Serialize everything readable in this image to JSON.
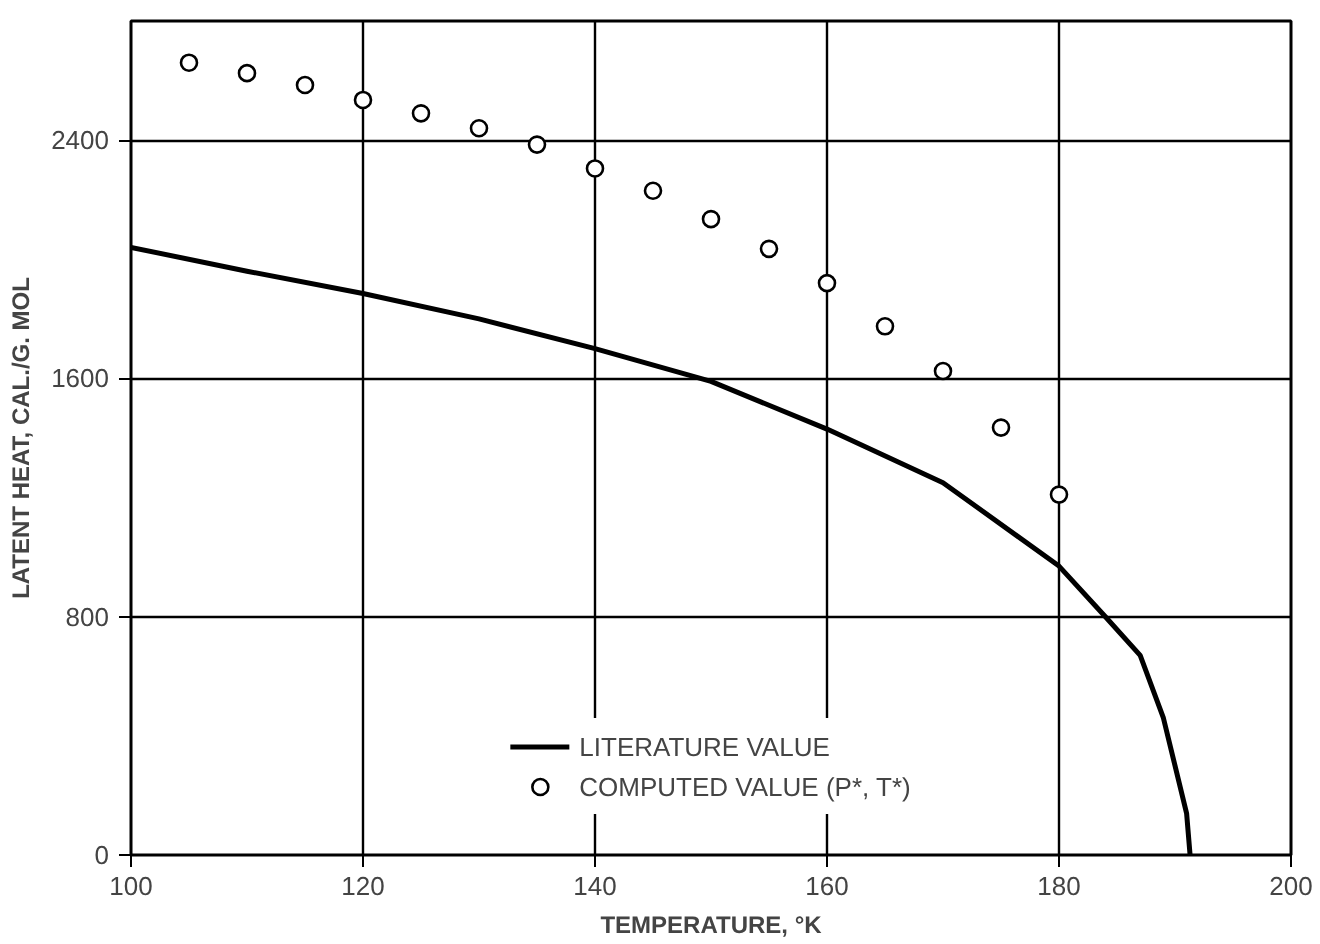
{
  "chart_data": {
    "type": "line",
    "xlabel": "TEMPERATURE, °K",
    "ylabel": "LATENT HEAT, CAL./G. MOL",
    "xlim": [
      100,
      200
    ],
    "ylim": [
      0,
      2800
    ],
    "xticks": [
      100,
      120,
      140,
      160,
      180,
      200
    ],
    "yticks": [
      0,
      800,
      1600,
      2400
    ],
    "grid": true,
    "legend": "bottom",
    "series": [
      {
        "name": "LITERATURE VALUE",
        "color": "#000000",
        "marker": "none",
        "line_style": "solid",
        "x": [
          100,
          110,
          120,
          130,
          140,
          150,
          160,
          170,
          180,
          184,
          187,
          189,
          190,
          191,
          191.3
        ],
        "values": [
          2040,
          1960,
          1885,
          1800,
          1700,
          1590,
          1430,
          1250,
          970,
          800,
          670,
          460,
          300,
          140,
          0
        ]
      },
      {
        "name": "COMPUTED VALUE (P*, T*)",
        "type": "scatter",
        "color": "#000000",
        "marker": "circle",
        "x": [
          105,
          110,
          115,
          120,
          125,
          130,
          135,
          140,
          145,
          150,
          155,
          160,
          165,
          170,
          175,
          180
        ],
        "values": [
          2660,
          2625,
          2585,
          2535,
          2490,
          2440,
          2385,
          2305,
          2230,
          2135,
          2035,
          1920,
          1775,
          1625,
          1435,
          1210
        ]
      }
    ]
  }
}
